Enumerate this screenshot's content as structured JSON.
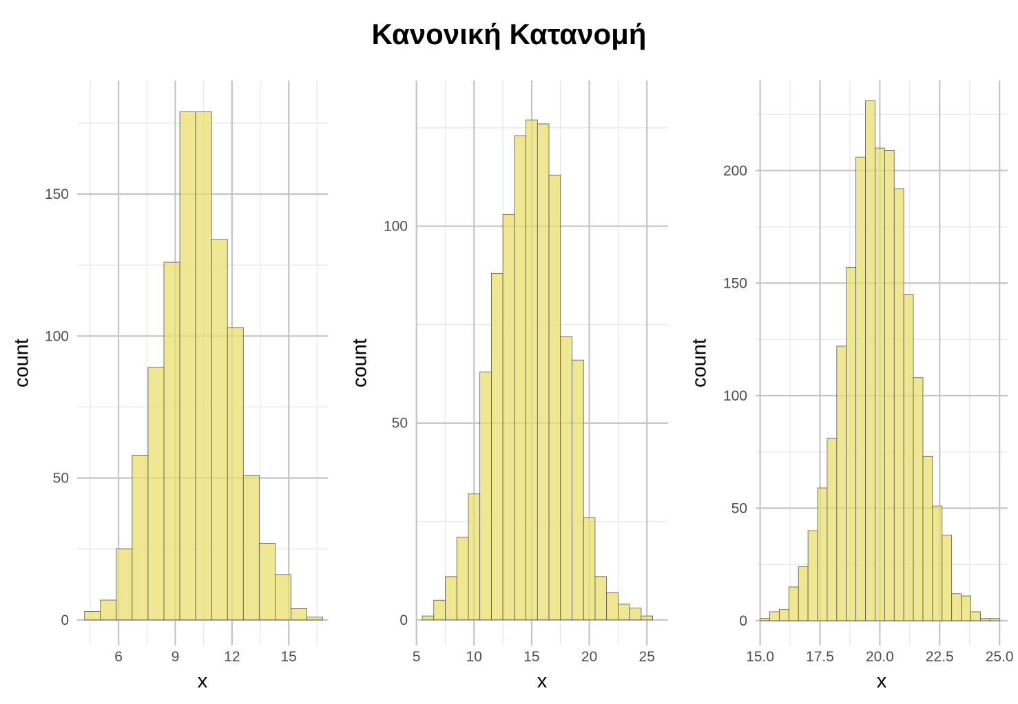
{
  "title": "Κανονική Κατανομή",
  "colors": {
    "bar_fill": "#ebdf6e",
    "bar_stroke": "#555555",
    "grid_major": "#c4c4c4",
    "grid_minor": "#e6e6e6"
  },
  "chart_data": [
    {
      "type": "bar",
      "xlabel": "x",
      "ylabel": "count",
      "grid": true,
      "xlim": [
        3.81,
        17.07
      ],
      "ylim": [
        -9,
        190
      ],
      "xticks": [
        6,
        9,
        12,
        15
      ],
      "xtick_labels": [
        "6",
        "9",
        "12",
        "15"
      ],
      "xminor": [
        4.5,
        7.5,
        10.5,
        13.5,
        16.5
      ],
      "yticks": [
        0,
        50,
        100,
        150
      ],
      "ytick_labels": [
        "0",
        "50",
        "100",
        "150"
      ],
      "yminor": [
        25,
        75,
        125,
        175
      ],
      "bin_start": 4.2,
      "bin_width": 0.84,
      "values": [
        3,
        7,
        25,
        58,
        89,
        126,
        179,
        179,
        134,
        103,
        51,
        27,
        16,
        4,
        1
      ]
    },
    {
      "type": "bar",
      "xlabel": "x",
      "ylabel": "count",
      "grid": true,
      "xlim": [
        4.96,
        26.84
      ],
      "ylim": [
        -6.5,
        137
      ],
      "xticks": [
        5,
        10,
        15,
        20,
        25
      ],
      "xtick_labels": [
        "5",
        "10",
        "15",
        "20",
        "25"
      ],
      "xminor": [
        7.5,
        12.5,
        17.5,
        22.5
      ],
      "yticks": [
        0,
        50,
        100
      ],
      "ytick_labels": [
        "0",
        "50",
        "100"
      ],
      "yminor": [
        25,
        75,
        125
      ],
      "bin_start": 5.5,
      "bin_width": 1.0,
      "values": [
        1,
        5,
        11,
        21,
        32,
        63,
        88,
        103,
        123,
        127,
        126,
        113,
        72,
        66,
        26,
        11,
        7,
        4,
        3,
        1
      ]
    },
    {
      "type": "bar",
      "xlabel": "x",
      "ylabel": "count",
      "grid": true,
      "xlim": [
        14.81,
        25.34
      ],
      "ylim": [
        -11,
        240
      ],
      "xticks": [
        15.0,
        17.5,
        20.0,
        22.5,
        25.0
      ],
      "xtick_labels": [
        "15.0",
        "17.5",
        "20.0",
        "22.5",
        "25.0"
      ],
      "xminor": [
        16.25,
        18.75,
        21.25,
        23.75
      ],
      "yticks": [
        0,
        50,
        100,
        150,
        200
      ],
      "ytick_labels": [
        "0",
        "50",
        "100",
        "150",
        "200"
      ],
      "yminor": [
        25,
        75,
        125,
        175,
        225
      ],
      "bin_start": 15.0,
      "bin_width": 0.4,
      "values": [
        1,
        4,
        5,
        15,
        24,
        40,
        59,
        81,
        122,
        157,
        206,
        231,
        210,
        209,
        192,
        145,
        108,
        73,
        51,
        38,
        12,
        11,
        4,
        1,
        1
      ]
    }
  ]
}
